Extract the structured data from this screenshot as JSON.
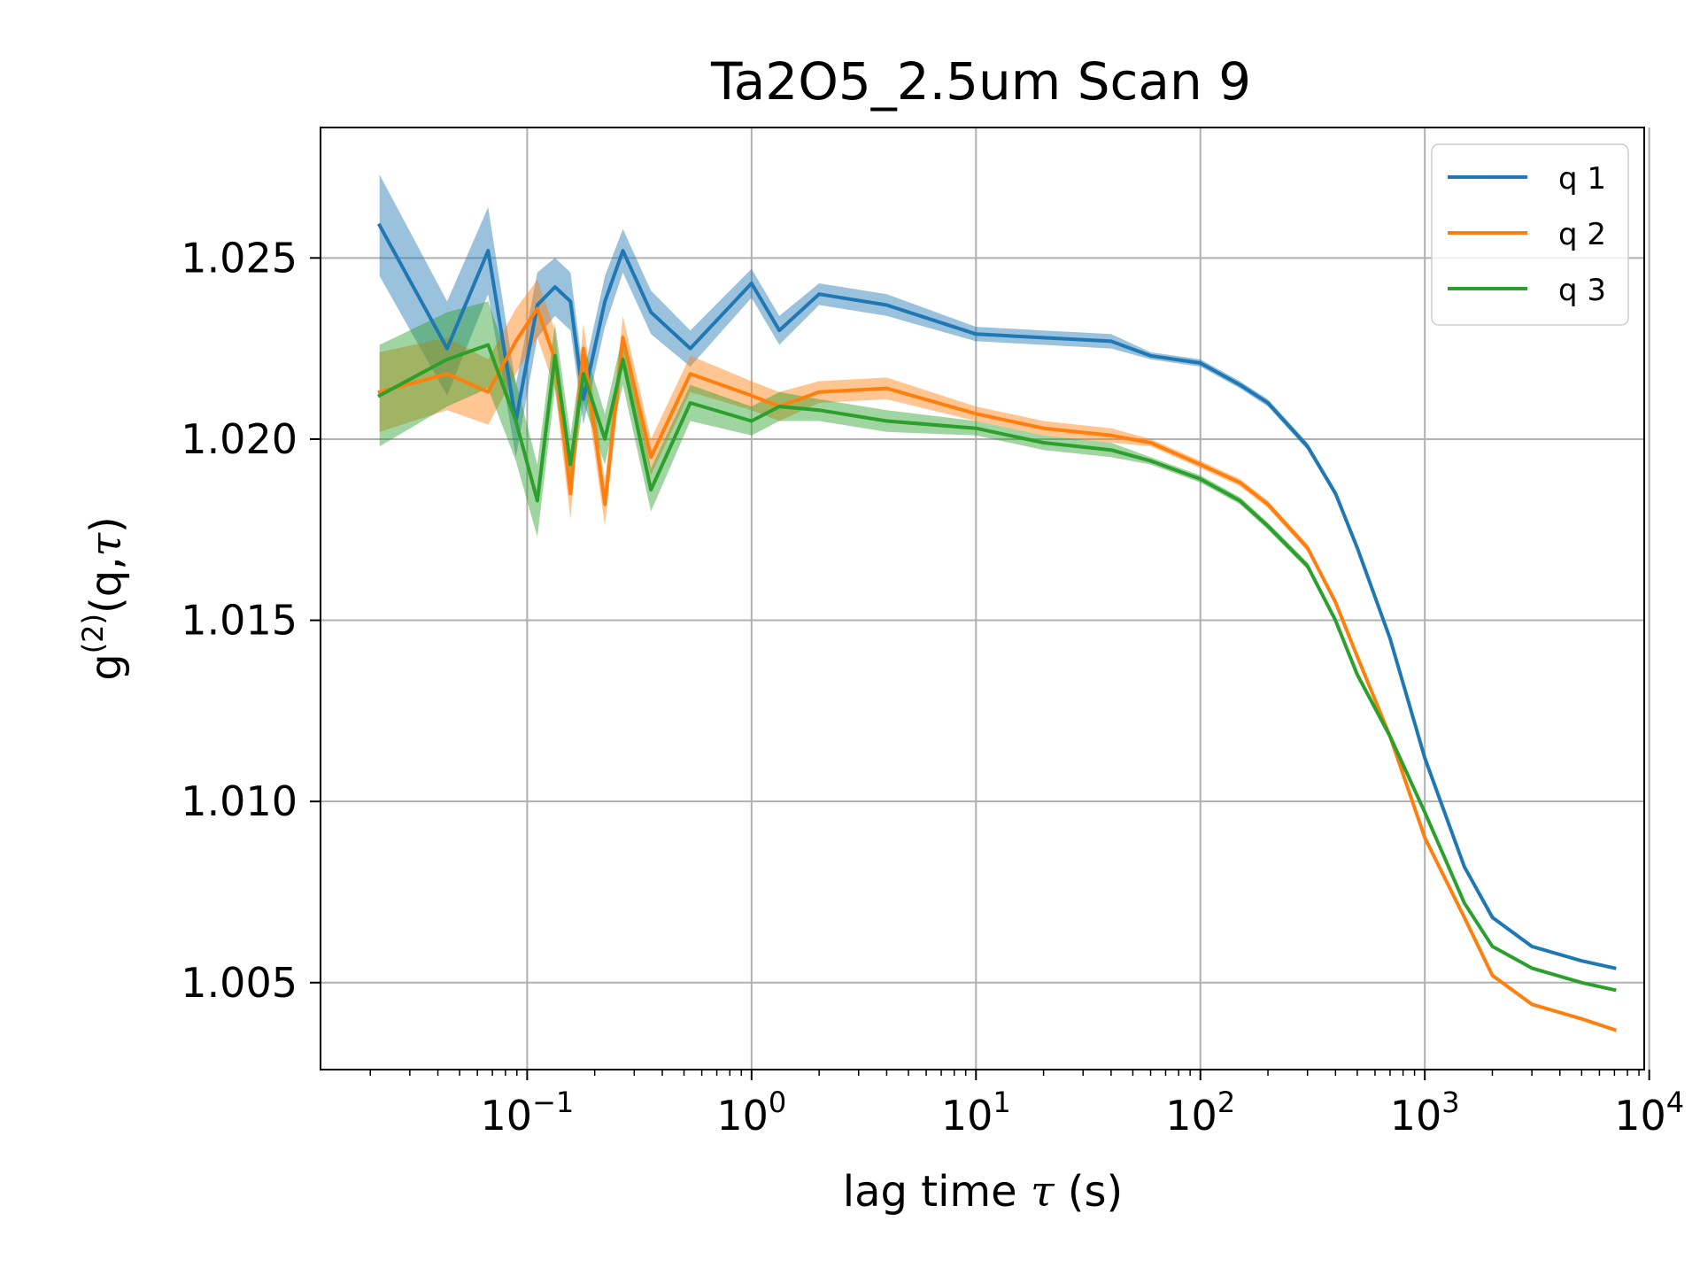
{
  "chart_data": {
    "type": "line",
    "title": "Ta2O5_2.5um Scan 9",
    "xlabel": "lag time τ (s)",
    "ylabel": "g(2)(q,τ)",
    "ylabel_parts": {
      "base": "g",
      "sup": "(2)",
      "rest": "(q,",
      "tau": "τ",
      "close": ")"
    },
    "xlabel_parts": {
      "pre": "lag time ",
      "tau": "τ",
      "post": " (s)"
    },
    "x_scale": "log",
    "xlim": [
      0.012,
      9500
    ],
    "ylim": [
      1.0026,
      1.0286
    ],
    "x_ticks": [
      {
        "value": 0.1,
        "base": "10",
        "exp": "−1"
      },
      {
        "value": 1,
        "base": "10",
        "exp": "0"
      },
      {
        "value": 10,
        "base": "10",
        "exp": "1"
      },
      {
        "value": 100,
        "base": "10",
        "exp": "2"
      },
      {
        "value": 1000,
        "base": "10",
        "exp": "3"
      },
      {
        "value": 10000,
        "base": "10",
        "exp": "4"
      }
    ],
    "y_ticks": [
      "1.005",
      "1.010",
      "1.015",
      "1.020",
      "1.025"
    ],
    "grid": true,
    "legend_position": "top-right",
    "series": [
      {
        "name": "q 1",
        "color": "#1f77b4",
        "x": [
          0.022,
          0.044,
          0.067,
          0.089,
          0.111,
          0.133,
          0.156,
          0.178,
          0.222,
          0.267,
          0.356,
          0.533,
          1.0,
          1.33,
          2.0,
          4.0,
          10.0,
          20.0,
          40.0,
          60.0,
          100.0,
          150.0,
          200.0,
          300.0,
          400.0,
          500.0,
          700.0,
          1000.0,
          1500.0,
          2000.0,
          3000.0,
          5000.0,
          7000.0
        ],
        "y": [
          1.0259,
          1.0225,
          1.0252,
          1.0205,
          1.0237,
          1.0242,
          1.0238,
          1.0211,
          1.0238,
          1.0252,
          1.0235,
          1.0225,
          1.0243,
          1.023,
          1.024,
          1.0237,
          1.0229,
          1.0228,
          1.0227,
          1.0223,
          1.0221,
          1.0215,
          1.021,
          1.0198,
          1.0185,
          1.017,
          1.0145,
          1.0112,
          1.0082,
          1.0068,
          1.006,
          1.0056,
          1.0054
        ],
        "band": [
          0.0014,
          0.0013,
          0.0012,
          0.001,
          0.0009,
          0.0008,
          0.0008,
          0.0007,
          0.0007,
          0.0006,
          0.0006,
          0.0005,
          0.0004,
          0.0004,
          0.0003,
          0.0003,
          0.0002,
          0.0002,
          0.0002,
          0.0001,
          0.0001,
          0.0001,
          0.0001,
          0.0001,
          0.0001,
          0.0001,
          0.0001,
          0.0,
          0.0,
          0.0,
          0.0,
          0.0,
          0.0
        ]
      },
      {
        "name": "q 2",
        "color": "#ff7f0e",
        "x": [
          0.022,
          0.044,
          0.067,
          0.089,
          0.111,
          0.133,
          0.156,
          0.178,
          0.222,
          0.267,
          0.356,
          0.533,
          1.0,
          1.33,
          2.0,
          4.0,
          10.0,
          20.0,
          40.0,
          60.0,
          100.0,
          150.0,
          200.0,
          300.0,
          400.0,
          500.0,
          700.0,
          1000.0,
          1500.0,
          2000.0,
          3000.0,
          5000.0,
          7000.0
        ],
        "y": [
          1.0213,
          1.0218,
          1.0213,
          1.0227,
          1.0236,
          1.0222,
          1.0185,
          1.0225,
          1.0182,
          1.0228,
          1.0195,
          1.0218,
          1.0212,
          1.0209,
          1.0213,
          1.0214,
          1.0207,
          1.0203,
          1.0201,
          1.0199,
          1.0193,
          1.0188,
          1.0182,
          1.017,
          1.0155,
          1.014,
          1.0118,
          1.009,
          1.0068,
          1.0052,
          1.0044,
          1.004,
          1.0037
        ],
        "band": [
          0.0011,
          0.001,
          0.0009,
          0.0009,
          0.0008,
          0.0008,
          0.0007,
          0.0007,
          0.0006,
          0.0006,
          0.0005,
          0.0005,
          0.0004,
          0.0004,
          0.0003,
          0.0003,
          0.0002,
          0.0002,
          0.0002,
          0.0001,
          0.0001,
          0.0001,
          0.0001,
          0.0001,
          0.0001,
          0.0001,
          0.0001,
          0.0,
          0.0,
          0.0,
          0.0,
          0.0,
          0.0
        ]
      },
      {
        "name": "q 3",
        "color": "#2ca02c",
        "x": [
          0.022,
          0.044,
          0.067,
          0.089,
          0.111,
          0.133,
          0.156,
          0.178,
          0.222,
          0.267,
          0.356,
          0.533,
          1.0,
          1.33,
          2.0,
          4.0,
          10.0,
          20.0,
          40.0,
          60.0,
          100.0,
          150.0,
          200.0,
          300.0,
          400.0,
          500.0,
          700.0,
          1000.0,
          1500.0,
          2000.0,
          3000.0,
          5000.0,
          7000.0
        ],
        "y": [
          1.0212,
          1.0222,
          1.0226,
          1.0205,
          1.0183,
          1.0223,
          1.0193,
          1.0218,
          1.02,
          1.0222,
          1.0186,
          1.021,
          1.0205,
          1.0209,
          1.0208,
          1.0205,
          1.0203,
          1.0199,
          1.0197,
          1.0194,
          1.0189,
          1.0183,
          1.0176,
          1.0165,
          1.015,
          1.0135,
          1.0118,
          1.0097,
          1.0072,
          1.006,
          1.0054,
          1.005,
          1.0048
        ],
        "band": [
          0.0014,
          0.0013,
          0.0012,
          0.0011,
          0.001,
          0.0009,
          0.0008,
          0.0008,
          0.0007,
          0.0007,
          0.0006,
          0.0005,
          0.0004,
          0.0004,
          0.0003,
          0.0003,
          0.0002,
          0.0002,
          0.0002,
          0.0001,
          0.0001,
          0.0001,
          0.0001,
          0.0001,
          0.0001,
          0.0001,
          0.0001,
          0.0,
          0.0,
          0.0,
          0.0,
          0.0,
          0.0
        ]
      }
    ]
  }
}
